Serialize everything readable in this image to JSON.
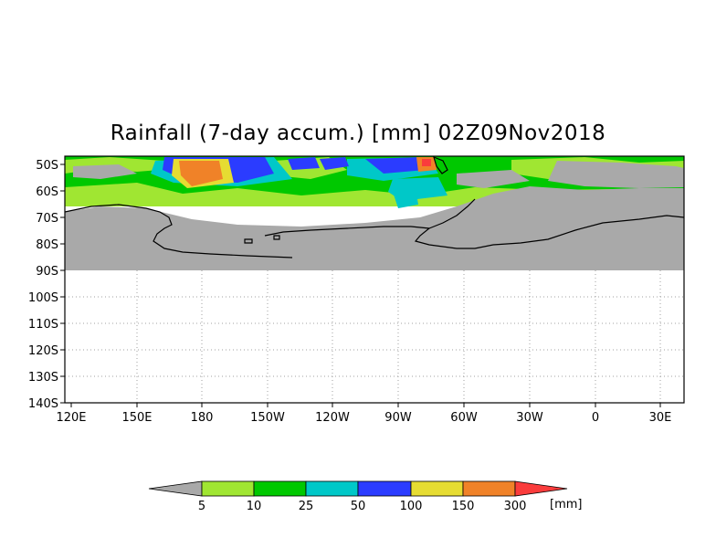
{
  "title": "Rainfall (7-day accum.) [mm] 02Z09Nov2018",
  "colors": {
    "land_mask": "#a9a9a9",
    "grid": "#a0a0a0",
    "coast": "#000000",
    "bins": [
      "#a9a9a9",
      "#a0e632",
      "#00c800",
      "#00c8c8",
      "#2b3cff",
      "#e6dc32",
      "#f08228",
      "#fa3c3c"
    ]
  },
  "y_ticks": [
    "50S",
    "60S",
    "70S",
    "80S",
    "90S",
    "100S",
    "110S",
    "120S",
    "130S",
    "140S"
  ],
  "x_ticks": [
    "120E",
    "150E",
    "180",
    "150W",
    "120W",
    "90W",
    "60W",
    "30W",
    "0",
    "30E"
  ],
  "colorbar": {
    "labels": [
      "5",
      "10",
      "25",
      "50",
      "100",
      "150",
      "300"
    ],
    "unit": "[mm]"
  }
}
